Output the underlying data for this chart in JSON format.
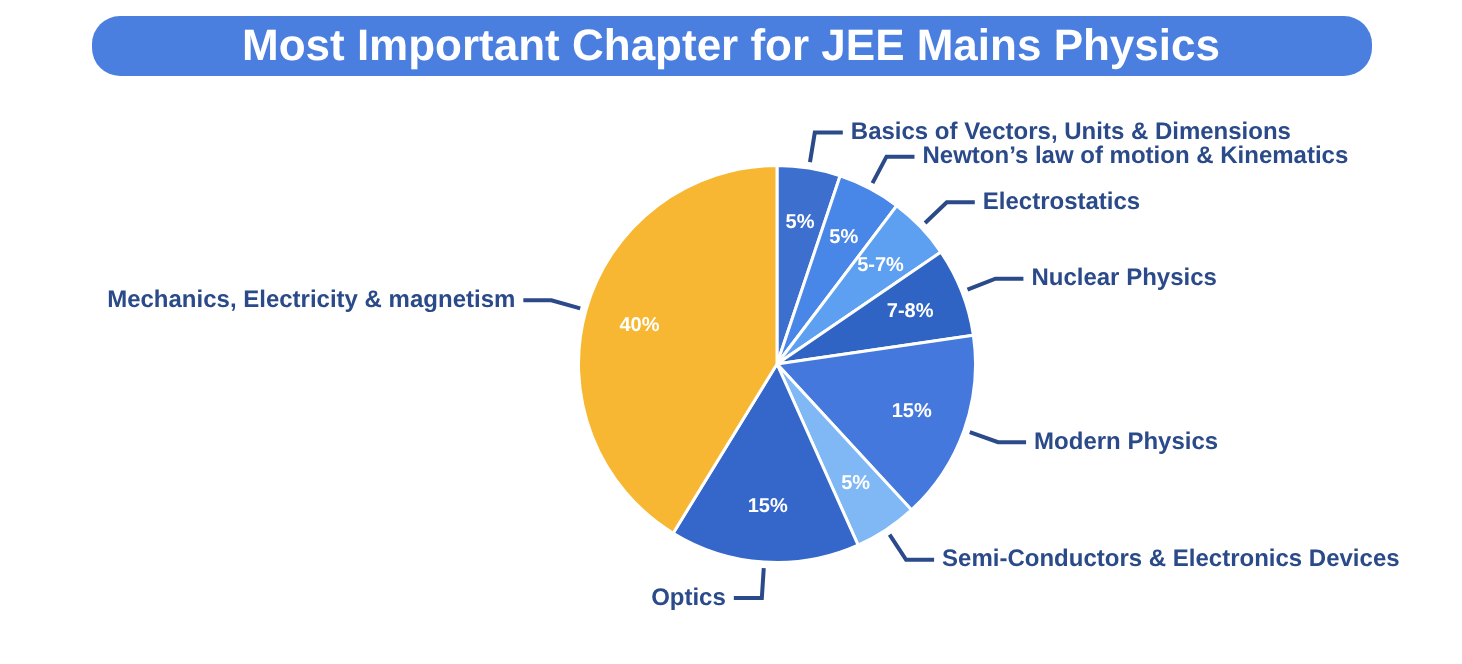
{
  "chart_data": {
    "type": "pie",
    "title": "Most Important Chapter for JEE Mains Physics",
    "categories": [
      "Basics of Vectors, Units & Dimensions",
      "Newton’s law of motion & Kinematics",
      "Electrostatics",
      "Nuclear Physics",
      "Modern Physics",
      "Semi-Conductors & Electronics Devices",
      "Optics",
      "Mechanics, Electricity & magnetism"
    ],
    "values": [
      5,
      5,
      5,
      7,
      15,
      5,
      15,
      40
    ],
    "value_labels": [
      "5%",
      "5%",
      "5-7%",
      "7-8%",
      "15%",
      "5%",
      "15%",
      "40%"
    ],
    "colors": [
      "#3d6fcf",
      "#4886e8",
      "#5d9ff0",
      "#2f63c4",
      "#4578dc",
      "#7fb8f5",
      "#3567cb",
      "#f7b733"
    ],
    "legend": false
  }
}
